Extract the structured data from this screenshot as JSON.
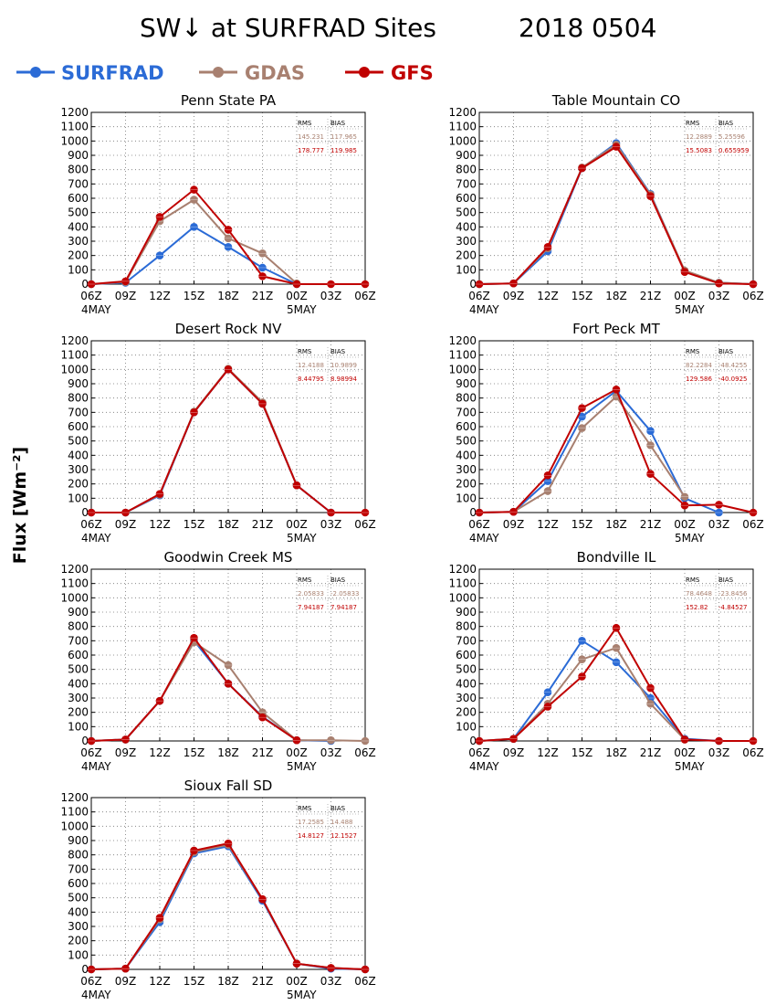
{
  "title": {
    "main": "SW↓ at SURFRAD Sites",
    "date": "2018 0504"
  },
  "ylabel": "Flux [Wm⁻²]",
  "legend": [
    {
      "name": "SURFRAD",
      "color": "#2b6bd6"
    },
    {
      "name": "GDAS",
      "color": "#a88070"
    },
    {
      "name": "GFS",
      "color": "#c00000"
    }
  ],
  "stats_header": {
    "rms": "RMS",
    "bias": "BIAS"
  },
  "x_tick_labels": [
    "06Z",
    "09Z",
    "12Z",
    "15Z",
    "18Z",
    "21Z",
    "00Z",
    "03Z",
    "06Z"
  ],
  "x_date_labels": [
    {
      "label": "4MAY",
      "index": 0
    },
    {
      "label": "5MAY",
      "index": 6
    }
  ],
  "y_ticks": [
    0,
    100,
    200,
    300,
    400,
    500,
    600,
    700,
    800,
    900,
    1000,
    1100,
    1200
  ],
  "chart_data": [
    {
      "type": "line",
      "title": "Penn State PA",
      "ylim": [
        0,
        1200
      ],
      "categories": [
        "06Z",
        "09Z",
        "12Z",
        "15Z",
        "18Z",
        "21Z",
        "00Z",
        "03Z",
        "06Z"
      ],
      "series": [
        {
          "name": "SURFRAD",
          "values": [
            0,
            10,
            200,
            400,
            260,
            115,
            0,
            null,
            null
          ]
        },
        {
          "name": "GDAS",
          "values": [
            0,
            15,
            440,
            590,
            320,
            215,
            5,
            null,
            null
          ]
        },
        {
          "name": "GFS",
          "values": [
            0,
            20,
            470,
            660,
            380,
            55,
            0,
            0,
            0
          ]
        }
      ],
      "stats": {
        "gdas": {
          "rms": "145.231",
          "bias": "117.965"
        },
        "gfs": {
          "rms": "178.777",
          "bias": "119.985"
        }
      }
    },
    {
      "type": "line",
      "title": "Table Mountain CO",
      "ylim": [
        0,
        1200
      ],
      "categories": [
        "06Z",
        "09Z",
        "12Z",
        "15Z",
        "18Z",
        "21Z",
        "00Z",
        "03Z",
        "06Z"
      ],
      "series": [
        {
          "name": "SURFRAD",
          "values": [
            0,
            5,
            230,
            810,
            985,
            630,
            90,
            10,
            0
          ]
        },
        {
          "name": "GDAS",
          "values": [
            0,
            5,
            250,
            815,
            975,
            625,
            95,
            10,
            0
          ]
        },
        {
          "name": "GFS",
          "values": [
            0,
            5,
            260,
            810,
            960,
            615,
            85,
            5,
            0
          ]
        }
      ],
      "stats": {
        "gdas": {
          "rms": "12.2889",
          "bias": "5.25596"
        },
        "gfs": {
          "rms": "15.5083",
          "bias": "0.655959"
        }
      }
    },
    {
      "type": "line",
      "title": "Desert Rock NV",
      "ylim": [
        0,
        1200
      ],
      "categories": [
        "06Z",
        "09Z",
        "12Z",
        "15Z",
        "18Z",
        "21Z",
        "00Z",
        "03Z",
        "06Z"
      ],
      "series": [
        {
          "name": "SURFRAD",
          "values": [
            0,
            0,
            120,
            700,
            1000,
            760,
            190,
            0,
            null
          ]
        },
        {
          "name": "GDAS",
          "values": [
            0,
            0,
            125,
            705,
            1005,
            770,
            190,
            null,
            null
          ]
        },
        {
          "name": "GFS",
          "values": [
            0,
            0,
            130,
            700,
            1000,
            760,
            190,
            0,
            0
          ]
        }
      ],
      "stats": {
        "gdas": {
          "rms": "12.4188",
          "bias": "10.9899"
        },
        "gfs": {
          "rms": "8.44795",
          "bias": "8.98994"
        }
      }
    },
    {
      "type": "line",
      "title": "Fort Peck MT",
      "ylim": [
        0,
        1200
      ],
      "categories": [
        "06Z",
        "09Z",
        "12Z",
        "15Z",
        "18Z",
        "21Z",
        "00Z",
        "03Z",
        "06Z"
      ],
      "series": [
        {
          "name": "SURFRAD",
          "values": [
            0,
            5,
            220,
            670,
            850,
            570,
            100,
            0,
            null
          ]
        },
        {
          "name": "GDAS",
          "values": [
            0,
            5,
            150,
            590,
            810,
            470,
            110,
            null,
            null
          ]
        },
        {
          "name": "GFS",
          "values": [
            0,
            5,
            260,
            730,
            860,
            270,
            50,
            55,
            0
          ]
        }
      ],
      "stats": {
        "gdas": {
          "rms": "82.2284",
          "bias": "-48.4255"
        },
        "gfs": {
          "rms": "129.586",
          "bias": "-40.0925"
        }
      }
    },
    {
      "type": "line",
      "title": "Goodwin Creek MS",
      "ylim": [
        0,
        1200
      ],
      "categories": [
        "06Z",
        "09Z",
        "12Z",
        "15Z",
        "18Z",
        "21Z",
        "00Z",
        "03Z",
        "06Z"
      ],
      "series": [
        {
          "name": "SURFRAD",
          "values": [
            0,
            10,
            280,
            700,
            400,
            170,
            5,
            0,
            null
          ]
        },
        {
          "name": "GDAS",
          "values": [
            0,
            10,
            280,
            690,
            530,
            200,
            5,
            5,
            0
          ]
        },
        {
          "name": "GFS",
          "values": [
            0,
            10,
            280,
            720,
            400,
            165,
            5,
            null,
            null
          ]
        }
      ],
      "stats": {
        "gdas": {
          "rms": "2.05833",
          "bias": "-2.05833"
        },
        "gfs": {
          "rms": "7.94187",
          "bias": "7.94187"
        }
      }
    },
    {
      "type": "line",
      "title": "Bondville IL",
      "ylim": [
        0,
        1200
      ],
      "categories": [
        "06Z",
        "09Z",
        "12Z",
        "15Z",
        "18Z",
        "21Z",
        "00Z",
        "03Z",
        "06Z"
      ],
      "series": [
        {
          "name": "SURFRAD",
          "values": [
            0,
            15,
            340,
            700,
            550,
            300,
            15,
            0,
            null
          ]
        },
        {
          "name": "GDAS",
          "values": [
            0,
            15,
            260,
            570,
            650,
            260,
            10,
            null,
            null
          ]
        },
        {
          "name": "GFS",
          "values": [
            0,
            15,
            240,
            450,
            790,
            370,
            10,
            0,
            0
          ]
        }
      ],
      "stats": {
        "gdas": {
          "rms": "78.4648",
          "bias": "-23.8456"
        },
        "gfs": {
          "rms": "152.82",
          "bias": "-4.84527"
        }
      }
    },
    {
      "type": "line",
      "title": "Sioux Fall SD",
      "ylim": [
        0,
        1200
      ],
      "categories": [
        "06Z",
        "09Z",
        "12Z",
        "15Z",
        "18Z",
        "21Z",
        "00Z",
        "03Z",
        "06Z"
      ],
      "series": [
        {
          "name": "SURFRAD",
          "values": [
            0,
            5,
            330,
            810,
            860,
            480,
            40,
            5,
            0
          ]
        },
        {
          "name": "GDAS",
          "values": [
            0,
            5,
            350,
            820,
            870,
            490,
            40,
            10,
            0
          ]
        },
        {
          "name": "GFS",
          "values": [
            0,
            5,
            360,
            830,
            880,
            490,
            40,
            10,
            0
          ]
        }
      ],
      "stats": {
        "gdas": {
          "rms": "17.2585",
          "bias": "14.488"
        },
        "gfs": {
          "rms": "14.8127",
          "bias": "12.1527"
        }
      }
    }
  ]
}
